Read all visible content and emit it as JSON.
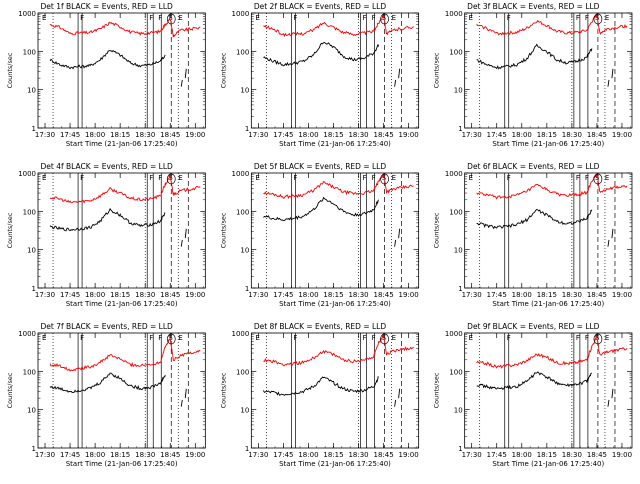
{
  "chart_data": [
    {
      "type": "line",
      "title": "Det 1f BLACK = Events, RED = LLD",
      "xlabel": "Start Time (21-Jan-06 17:25:40)",
      "ylabel": "Counts/sec",
      "x_ticks": [
        "17:30",
        "17:45",
        "18:00",
        "18:15",
        "18:30",
        "18:45",
        "19:00"
      ],
      "y_ticks": [
        "1",
        "10",
        "100",
        "1000"
      ],
      "y_scale": "log",
      "ylim": [
        1,
        1000
      ],
      "xlim_hours": [
        17.43,
        19.1
      ],
      "markers": [
        "E",
        "F",
        "F",
        "F",
        "S",
        "E"
      ],
      "series": [
        {
          "name": "RED = LLD",
          "color": "#ff0000",
          "x_hours": [
            17.55,
            17.65,
            17.75,
            17.85,
            17.95,
            18.05,
            18.15,
            18.25,
            18.35,
            18.45,
            18.55,
            18.65,
            18.7,
            18.75,
            18.78,
            18.85,
            18.95,
            19.05
          ],
          "values": [
            500,
            420,
            290,
            300,
            310,
            380,
            560,
            440,
            320,
            290,
            300,
            330,
            500,
            700,
            250,
            350,
            380,
            420
          ]
        },
        {
          "name": "BLACK = Events",
          "color": "#000000",
          "x_hours": [
            17.55,
            17.65,
            17.75,
            17.85,
            17.95,
            18.05,
            18.15,
            18.25,
            18.35,
            18.45,
            18.55,
            18.65,
            18.7
          ],
          "values": [
            60,
            45,
            38,
            40,
            42,
            60,
            110,
            80,
            50,
            42,
            45,
            55,
            80
          ]
        }
      ]
    },
    {
      "type": "line",
      "title": "Det 2f BLACK = Events, RED = LLD",
      "xlabel": "Start Time (21-Jan-06 17:25:40)",
      "ylabel": "Counts/sec",
      "x_ticks": [
        "17:30",
        "17:45",
        "18:00",
        "18:15",
        "18:30",
        "18:45",
        "19:00"
      ],
      "y_ticks": [
        "1",
        "10",
        "100",
        "1000"
      ],
      "y_scale": "log",
      "ylim": [
        1,
        1000
      ],
      "xlim_hours": [
        17.43,
        19.1
      ],
      "markers": [
        "E",
        "F",
        "F",
        "F",
        "S",
        "E"
      ],
      "series": [
        {
          "name": "RED = LLD",
          "color": "#ff0000",
          "x_hours": [
            17.55,
            17.65,
            17.75,
            17.85,
            17.95,
            18.05,
            18.15,
            18.25,
            18.35,
            18.45,
            18.55,
            18.65,
            18.7,
            18.75,
            18.78,
            18.85,
            18.95,
            19.05
          ],
          "values": [
            450,
            380,
            270,
            280,
            290,
            360,
            560,
            430,
            310,
            280,
            300,
            330,
            550,
            900,
            280,
            360,
            400,
            440
          ]
        },
        {
          "name": "BLACK = Events",
          "color": "#000000",
          "x_hours": [
            17.55,
            17.65,
            17.75,
            17.85,
            17.95,
            18.05,
            18.15,
            18.25,
            18.35,
            18.45,
            18.55,
            18.65,
            18.7
          ],
          "values": [
            70,
            55,
            45,
            48,
            55,
            80,
            180,
            130,
            75,
            60,
            65,
            90,
            150
          ]
        }
      ]
    },
    {
      "type": "line",
      "title": "Det 3f BLACK = Events, RED = LLD",
      "xlabel": "Start Time (21-Jan-06 17:25:40)",
      "ylabel": "Counts/sec",
      "x_ticks": [
        "17:30",
        "17:45",
        "18:00",
        "18:15",
        "18:30",
        "18:45",
        "19:00"
      ],
      "y_ticks": [
        "1",
        "10",
        "100",
        "1000"
      ],
      "y_scale": "log",
      "ylim": [
        1,
        1000
      ],
      "xlim_hours": [
        17.43,
        19.1
      ],
      "markers": [
        "E",
        "F",
        "F",
        "F",
        "S",
        "E"
      ],
      "series": [
        {
          "name": "RED = LLD",
          "color": "#ff0000",
          "x_hours": [
            17.55,
            17.65,
            17.75,
            17.85,
            17.95,
            18.05,
            18.15,
            18.25,
            18.35,
            18.45,
            18.55,
            18.65,
            18.7,
            18.75,
            18.78,
            18.85,
            18.95,
            19.05
          ],
          "values": [
            480,
            400,
            290,
            300,
            310,
            400,
            620,
            470,
            330,
            300,
            310,
            350,
            600,
            900,
            300,
            380,
            420,
            460
          ]
        },
        {
          "name": "BLACK = Events",
          "color": "#000000",
          "x_hours": [
            17.55,
            17.65,
            17.75,
            17.85,
            17.95,
            18.05,
            18.15,
            18.25,
            18.35,
            18.45,
            18.55,
            18.65,
            18.7
          ],
          "values": [
            60,
            45,
            38,
            40,
            45,
            65,
            140,
            100,
            60,
            50,
            55,
            70,
            120
          ]
        }
      ]
    },
    {
      "type": "line",
      "title": "Det 4f BLACK = Events, RED = LLD",
      "xlabel": "Start Time (21-Jan-06 17:25:40)",
      "ylabel": "Counts/sec",
      "x_ticks": [
        "17:30",
        "17:45",
        "18:00",
        "18:15",
        "18:30",
        "18:45",
        "19:00"
      ],
      "y_ticks": [
        "1",
        "10",
        "100",
        "1000"
      ],
      "y_scale": "log",
      "ylim": [
        1,
        1000
      ],
      "xlim_hours": [
        17.43,
        19.1
      ],
      "markers": [
        "E",
        "F",
        "F",
        "F",
        "S",
        "E"
      ],
      "series": [
        {
          "name": "RED = LLD",
          "color": "#ff0000",
          "x_hours": [
            17.55,
            17.65,
            17.75,
            17.85,
            17.95,
            18.05,
            18.15,
            18.25,
            18.35,
            18.45,
            18.55,
            18.65,
            18.7,
            18.75,
            18.78,
            18.85,
            18.95,
            19.05
          ],
          "values": [
            230,
            210,
            170,
            180,
            190,
            250,
            380,
            300,
            220,
            200,
            210,
            250,
            500,
            800,
            280,
            340,
            380,
            420
          ]
        },
        {
          "name": "BLACK = Events",
          "color": "#000000",
          "x_hours": [
            17.55,
            17.65,
            17.75,
            17.85,
            17.95,
            18.05,
            18.15,
            18.25,
            18.35,
            18.45,
            18.55,
            18.65,
            18.7
          ],
          "values": [
            40,
            35,
            33,
            35,
            38,
            55,
            110,
            80,
            50,
            42,
            45,
            55,
            90
          ]
        }
      ]
    },
    {
      "type": "line",
      "title": "Det 5f BLACK = Events, RED = LLD",
      "xlabel": "Start Time (21-Jan-06 17:25:40)",
      "ylabel": "Counts/sec",
      "x_ticks": [
        "17:30",
        "17:45",
        "18:00",
        "18:15",
        "18:30",
        "18:45",
        "19:00"
      ],
      "y_ticks": [
        "1",
        "10",
        "100",
        "1000"
      ],
      "y_scale": "log",
      "ylim": [
        1,
        1000
      ],
      "xlim_hours": [
        17.43,
        19.1
      ],
      "markers": [
        "E",
        "F",
        "F",
        "F",
        "S",
        "E"
      ],
      "series": [
        {
          "name": "RED = LLD",
          "color": "#ff0000",
          "x_hours": [
            17.55,
            17.65,
            17.75,
            17.85,
            17.95,
            18.05,
            18.15,
            18.25,
            18.35,
            18.45,
            18.55,
            18.65,
            18.7,
            18.75,
            18.78,
            18.85,
            18.95,
            19.05
          ],
          "values": [
            300,
            280,
            240,
            250,
            270,
            350,
            560,
            430,
            320,
            290,
            300,
            340,
            600,
            950,
            320,
            380,
            420,
            460
          ]
        },
        {
          "name": "BLACK = Events",
          "color": "#000000",
          "x_hours": [
            17.55,
            17.65,
            17.75,
            17.85,
            17.95,
            18.05,
            18.15,
            18.25,
            18.35,
            18.45,
            18.55,
            18.65,
            18.7
          ],
          "values": [
            75,
            65,
            60,
            65,
            75,
            110,
            220,
            160,
            100,
            80,
            85,
            110,
            200
          ]
        }
      ]
    },
    {
      "type": "line",
      "title": "Det 6f BLACK = Events, RED = LLD",
      "xlabel": "Start Time (21-Jan-06 17:25:40)",
      "ylabel": "Counts/sec",
      "x_ticks": [
        "17:30",
        "17:45",
        "18:00",
        "18:15",
        "18:30",
        "18:45",
        "19:00"
      ],
      "y_ticks": [
        "1",
        "10",
        "100",
        "1000"
      ],
      "y_scale": "log",
      "ylim": [
        1,
        1000
      ],
      "xlim_hours": [
        17.43,
        19.1
      ],
      "markers": [
        "E",
        "F",
        "F",
        "F",
        "S",
        "E"
      ],
      "series": [
        {
          "name": "RED = LLD",
          "color": "#ff0000",
          "x_hours": [
            17.55,
            17.65,
            17.75,
            17.85,
            17.95,
            18.05,
            18.15,
            18.25,
            18.35,
            18.45,
            18.55,
            18.65,
            18.7,
            18.75,
            18.78,
            18.85,
            18.95,
            19.05
          ],
          "values": [
            300,
            270,
            230,
            240,
            260,
            330,
            480,
            370,
            280,
            260,
            270,
            310,
            600,
            950,
            320,
            380,
            420,
            460
          ]
        },
        {
          "name": "BLACK = Events",
          "color": "#000000",
          "x_hours": [
            17.55,
            17.65,
            17.75,
            17.85,
            17.95,
            18.05,
            18.15,
            18.25,
            18.35,
            18.45,
            18.55,
            18.65,
            18.7
          ],
          "values": [
            50,
            42,
            38,
            40,
            45,
            60,
            110,
            80,
            55,
            48,
            52,
            65,
            110
          ]
        }
      ]
    },
    {
      "type": "line",
      "title": "Det 7f BLACK = Events, RED = LLD",
      "xlabel": "Start Time (21-Jan-06 17:25:40)",
      "ylabel": "Counts/sec",
      "x_ticks": [
        "17:30",
        "17:45",
        "18:00",
        "18:15",
        "18:30",
        "18:45",
        "19:00"
      ],
      "y_ticks": [
        "1",
        "10",
        "100",
        "1000"
      ],
      "y_scale": "log",
      "ylim": [
        1,
        1000
      ],
      "xlim_hours": [
        17.43,
        19.1
      ],
      "markers": [
        "E",
        "F",
        "F",
        "F",
        "S",
        "E"
      ],
      "series": [
        {
          "name": "RED = LLD",
          "color": "#ff0000",
          "x_hours": [
            17.55,
            17.65,
            17.75,
            17.85,
            17.95,
            18.05,
            18.15,
            18.25,
            18.35,
            18.45,
            18.55,
            18.65,
            18.7,
            18.75,
            18.78,
            18.85,
            18.95,
            19.05
          ],
          "values": [
            150,
            140,
            110,
            120,
            130,
            170,
            260,
            210,
            150,
            140,
            150,
            170,
            450,
            700,
            200,
            260,
            300,
            340
          ]
        },
        {
          "name": "BLACK = Events",
          "color": "#000000",
          "x_hours": [
            17.55,
            17.65,
            17.75,
            17.85,
            17.95,
            18.05,
            18.15,
            18.25,
            18.35,
            18.45,
            18.55,
            18.65,
            18.7
          ],
          "values": [
            40,
            35,
            30,
            32,
            36,
            50,
            90,
            65,
            42,
            36,
            38,
            48,
            80
          ]
        }
      ]
    },
    {
      "type": "line",
      "title": "Det 8f BLACK = Events, RED = LLD",
      "xlabel": "Start Time (21-Jan-06 17:25:40)",
      "ylabel": "Counts/sec",
      "x_ticks": [
        "17:30",
        "17:45",
        "18:00",
        "18:15",
        "18:30",
        "18:45",
        "19:00"
      ],
      "y_ticks": [
        "1",
        "10",
        "100",
        "1000"
      ],
      "y_scale": "log",
      "ylim": [
        1,
        1000
      ],
      "xlim_hours": [
        17.43,
        19.1
      ],
      "markers": [
        "E",
        "F",
        "F",
        "F",
        "S",
        "E"
      ],
      "series": [
        {
          "name": "RED = LLD",
          "color": "#ff0000",
          "x_hours": [
            17.55,
            17.65,
            17.75,
            17.85,
            17.95,
            18.05,
            18.15,
            18.25,
            18.35,
            18.45,
            18.55,
            18.65,
            18.7,
            18.75,
            18.78,
            18.85,
            18.95,
            19.05
          ],
          "values": [
            200,
            180,
            150,
            160,
            170,
            220,
            340,
            270,
            200,
            180,
            200,
            240,
            550,
            900,
            280,
            340,
            380,
            420
          ]
        },
        {
          "name": "BLACK = Events",
          "color": "#000000",
          "x_hours": [
            17.55,
            17.65,
            17.75,
            17.85,
            17.95,
            18.05,
            18.15,
            18.25,
            18.35,
            18.45,
            18.55,
            18.65,
            18.7
          ],
          "values": [
            30,
            28,
            25,
            27,
            30,
            40,
            70,
            50,
            35,
            30,
            32,
            40,
            70
          ]
        }
      ]
    },
    {
      "type": "line",
      "title": "Det 9f BLACK = Events, RED = LLD",
      "xlabel": "Start Time (21-Jan-06 17:25:40)",
      "ylabel": "Counts/sec",
      "x_ticks": [
        "17:30",
        "17:45",
        "18:00",
        "18:15",
        "18:30",
        "18:45",
        "19:00"
      ],
      "y_ticks": [
        "1",
        "10",
        "100",
        "1000"
      ],
      "y_scale": "log",
      "ylim": [
        1,
        1000
      ],
      "xlim_hours": [
        17.43,
        19.1
      ],
      "markers": [
        "E",
        "F",
        "F",
        "F",
        "S",
        "E"
      ],
      "series": [
        {
          "name": "RED = LLD",
          "color": "#ff0000",
          "x_hours": [
            17.55,
            17.65,
            17.75,
            17.85,
            17.95,
            18.05,
            18.15,
            18.25,
            18.35,
            18.45,
            18.55,
            18.65,
            18.7,
            18.75,
            18.78,
            18.85,
            18.95,
            19.05
          ],
          "values": [
            170,
            160,
            130,
            140,
            150,
            190,
            280,
            230,
            170,
            160,
            170,
            200,
            450,
            800,
            260,
            320,
            360,
            400
          ]
        },
        {
          "name": "BLACK = Events",
          "color": "#000000",
          "x_hours": [
            17.55,
            17.65,
            17.75,
            17.85,
            17.95,
            18.05,
            18.15,
            18.25,
            18.35,
            18.45,
            18.55,
            18.65,
            18.7
          ],
          "values": [
            45,
            40,
            35,
            37,
            40,
            55,
            95,
            70,
            50,
            42,
            45,
            55,
            90
          ]
        }
      ]
    }
  ]
}
